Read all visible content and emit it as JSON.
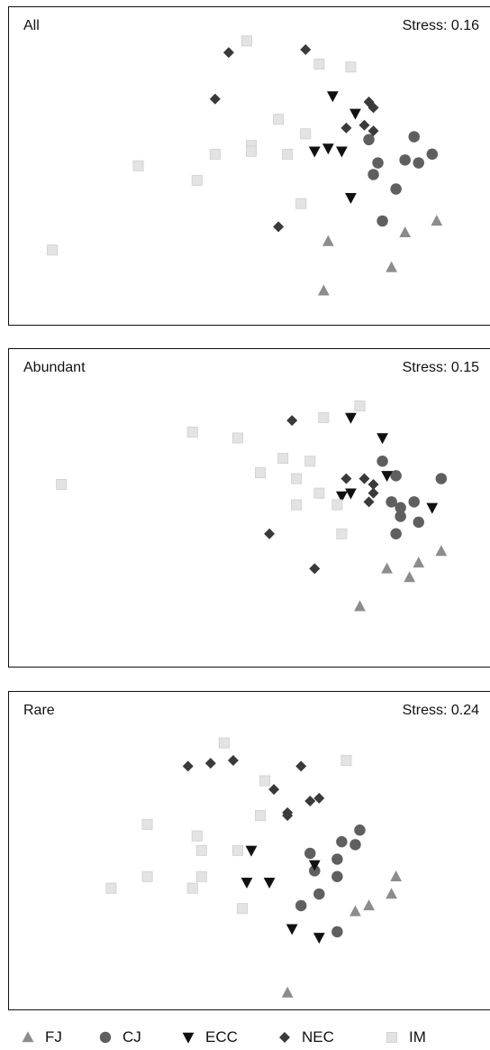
{
  "chart_data": {
    "type": "scatter",
    "legend": [
      {
        "name": "FJ",
        "shape": "triangle-up",
        "color": "#8c8c8c"
      },
      {
        "name": "CJ",
        "shape": "circle",
        "color": "#5f5f5f"
      },
      {
        "name": "ECC",
        "shape": "triangle-down",
        "color": "#111111"
      },
      {
        "name": "NEC",
        "shape": "diamond",
        "color": "#3a3a3a"
      },
      {
        "name": "IM",
        "shape": "square",
        "color": "#e3e3e3"
      }
    ],
    "legend_position": "bottom",
    "panels": [
      {
        "title": "All",
        "stress": "Stress: 0.16",
        "xlim": [
          0,
          100
        ],
        "ylim": [
          0,
          100
        ],
        "series": [
          {
            "name": "FJ",
            "points": [
              [
                84,
                28
              ],
              [
                91,
                32
              ],
              [
                67,
                25
              ],
              [
                81,
                16
              ],
              [
                66,
                8
              ]
            ]
          },
          {
            "name": "CJ",
            "points": [
              [
                76,
                60
              ],
              [
                86,
                61
              ],
              [
                78,
                52
              ],
              [
                90,
                55
              ],
              [
                84,
                53
              ],
              [
                87,
                52
              ],
              [
                77,
                48
              ],
              [
                82,
                43
              ],
              [
                79,
                32
              ]
            ]
          },
          {
            "name": "ECC",
            "points": [
              [
                68,
                75
              ],
              [
                67,
                57
              ],
              [
                64,
                56
              ],
              [
                70,
                56
              ],
              [
                73,
                69
              ],
              [
                72,
                40
              ]
            ]
          },
          {
            "name": "NEC",
            "points": [
              [
                45,
                90
              ],
              [
                62,
                91
              ],
              [
                42,
                74
              ],
              [
                76,
                73
              ],
              [
                77,
                71
              ],
              [
                75,
                65
              ],
              [
                77,
                63
              ],
              [
                71,
                64
              ],
              [
                56,
                30
              ]
            ]
          },
          {
            "name": "IM",
            "points": [
              [
                49,
                94
              ],
              [
                65,
                86
              ],
              [
                72,
                85
              ],
              [
                56,
                67
              ],
              [
                62,
                62
              ],
              [
                50,
                58
              ],
              [
                50,
                56
              ],
              [
                42,
                55
              ],
              [
                58,
                55
              ],
              [
                25,
                51
              ],
              [
                38,
                46
              ],
              [
                61,
                38
              ],
              [
                6,
                22
              ]
            ]
          }
        ]
      },
      {
        "title": "Abundant",
        "stress": "Stress: 0.15",
        "xlim": [
          0,
          100
        ],
        "ylim": [
          0,
          100
        ],
        "series": [
          {
            "name": "FJ",
            "points": [
              [
                92,
                36
              ],
              [
                87,
                32
              ],
              [
                80,
                30
              ],
              [
                85,
                27
              ],
              [
                74,
                17
              ]
            ]
          },
          {
            "name": "CJ",
            "points": [
              [
                79,
                67
              ],
              [
                82,
                62
              ],
              [
                92,
                61
              ],
              [
                81,
                53
              ],
              [
                83,
                51
              ],
              [
                86,
                53
              ],
              [
                83,
                48
              ],
              [
                87,
                46
              ],
              [
                82,
                42
              ]
            ]
          },
          {
            "name": "ECC",
            "points": [
              [
                72,
                82
              ],
              [
                79,
                75
              ],
              [
                80,
                62
              ],
              [
                72,
                56
              ],
              [
                70,
                55
              ],
              [
                90,
                51
              ]
            ]
          },
          {
            "name": "NEC",
            "points": [
              [
                59,
                81
              ],
              [
                71,
                61
              ],
              [
                75,
                61
              ],
              [
                77,
                59
              ],
              [
                77,
                56
              ],
              [
                76,
                53
              ],
              [
                54,
                42
              ],
              [
                64,
                30
              ]
            ]
          },
          {
            "name": "IM",
            "points": [
              [
                74,
                86
              ],
              [
                66,
                82
              ],
              [
                37,
                77
              ],
              [
                47,
                75
              ],
              [
                57,
                68
              ],
              [
                63,
                67
              ],
              [
                52,
                63
              ],
              [
                60,
                61
              ],
              [
                65,
                56
              ],
              [
                69,
                52
              ],
              [
                60,
                52
              ],
              [
                70,
                42
              ],
              [
                8,
                59
              ]
            ]
          }
        ]
      },
      {
        "title": "Rare",
        "stress": "Stress: 0.24",
        "xlim": [
          0,
          100
        ],
        "ylim": [
          0,
          100
        ],
        "series": [
          {
            "name": "FJ",
            "points": [
              [
                82,
                42
              ],
              [
                81,
                36
              ],
              [
                76,
                32
              ],
              [
                73,
                30
              ],
              [
                58,
                2
              ]
            ]
          },
          {
            "name": "CJ",
            "points": [
              [
                74,
                58
              ],
              [
                70,
                54
              ],
              [
                73,
                53
              ],
              [
                63,
                50
              ],
              [
                69,
                48
              ],
              [
                64,
                44
              ],
              [
                69,
                42
              ],
              [
                65,
                36
              ],
              [
                61,
                32
              ],
              [
                69,
                23
              ]
            ]
          },
          {
            "name": "ECC",
            "points": [
              [
                50,
                51
              ],
              [
                64,
                46
              ],
              [
                49,
                40
              ],
              [
                54,
                40
              ],
              [
                59,
                24
              ],
              [
                65,
                21
              ]
            ]
          },
          {
            "name": "NEC",
            "points": [
              [
                36,
                80
              ],
              [
                41,
                81
              ],
              [
                46,
                82
              ],
              [
                61,
                80
              ],
              [
                55,
                72
              ],
              [
                65,
                69
              ],
              [
                63,
                68
              ],
              [
                58,
                64
              ],
              [
                58,
                63
              ]
            ]
          },
          {
            "name": "IM",
            "points": [
              [
                44,
                88
              ],
              [
                71,
                82
              ],
              [
                53,
                75
              ],
              [
                52,
                63
              ],
              [
                27,
                60
              ],
              [
                38,
                56
              ],
              [
                39,
                51
              ],
              [
                47,
                51
              ],
              [
                27,
                42
              ],
              [
                39,
                42
              ],
              [
                37,
                38
              ],
              [
                19,
                38
              ],
              [
                48,
                31
              ]
            ]
          }
        ]
      }
    ]
  }
}
